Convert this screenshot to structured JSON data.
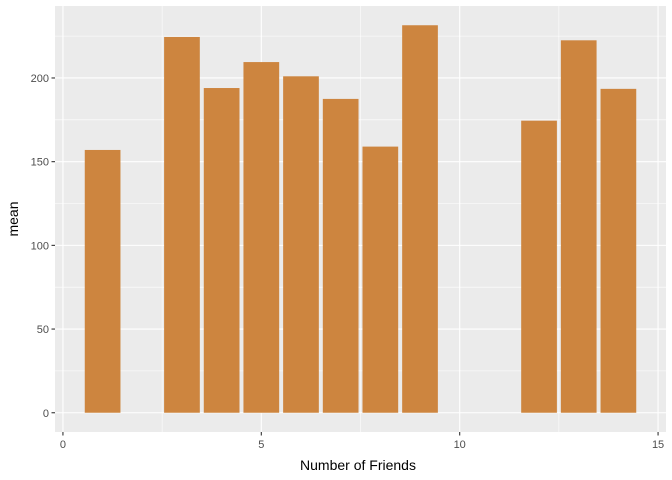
{
  "chart_data": {
    "type": "bar",
    "xlabel": "Number of Friends",
    "ylabel": "mean",
    "x": [
      1,
      3,
      4,
      5,
      6,
      7,
      8,
      9,
      12,
      13,
      14
    ],
    "values": [
      157,
      224.5,
      194,
      209.5,
      201,
      187.5,
      159,
      231.5,
      174.5,
      222.5,
      193.5
    ],
    "xlim": [
      -0.2,
      15.2
    ],
    "ylim": [
      -11.5,
      243
    ],
    "x_ticks": [
      0,
      5,
      10,
      15
    ],
    "x_tick_labels": [
      "0",
      "5",
      "10",
      "15"
    ],
    "y_ticks": [
      0,
      50,
      100,
      150,
      200
    ],
    "y_tick_labels": [
      "0",
      "50",
      "100",
      "150",
      "200"
    ],
    "grid": true,
    "colors": {
      "bar": "#CD853F",
      "panel": "#EBEBEB",
      "grid_major": "#FFFFFF",
      "tick_text": "#4D4D4D"
    }
  }
}
